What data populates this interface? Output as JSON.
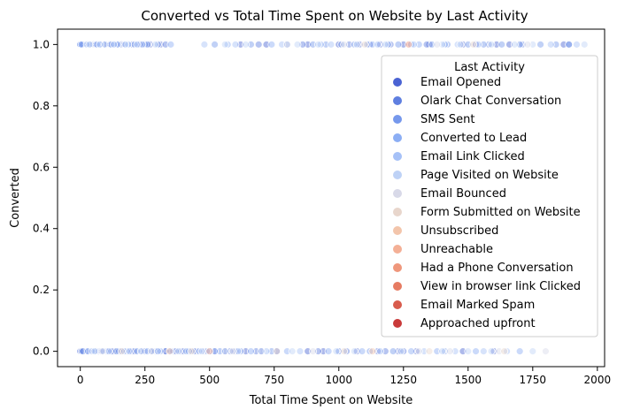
{
  "chart_data": {
    "type": "scatter",
    "title": "Converted vs Total Time Spent on Website by Last Activity",
    "xlabel": "Total Time Spent on Website",
    "ylabel": "Converted",
    "xlim": [
      -88,
      2028
    ],
    "ylim": [
      -0.05,
      1.05
    ],
    "x_ticks": [
      0,
      250,
      500,
      750,
      1000,
      1250,
      1500,
      1750,
      2000
    ],
    "y_ticks": [
      0.0,
      0.2,
      0.4,
      0.6,
      0.8,
      1.0
    ],
    "x_tick_labels": [
      "0",
      "250",
      "500",
      "750",
      "1000",
      "1250",
      "1500",
      "1750",
      "2000"
    ],
    "y_tick_labels": [
      "0.0",
      "0.2",
      "0.4",
      "0.6",
      "0.8",
      "1.0"
    ],
    "grid": false,
    "legend": {
      "title": "Last Activity",
      "placement": "right",
      "entries": [
        {
          "name": "Email Opened",
          "color": "#4a63d3"
        },
        {
          "name": "Olark Chat Conversation",
          "color": "#5f7fe0"
        },
        {
          "name": "SMS Sent",
          "color": "#7698ec"
        },
        {
          "name": "Converted to Lead",
          "color": "#8caef4"
        },
        {
          "name": "Email Link Clicked",
          "color": "#a6c1f7"
        },
        {
          "name": "Page Visited on Website",
          "color": "#bed2f6"
        },
        {
          "name": "Email Bounced",
          "color": "#d8d9e8"
        },
        {
          "name": "Form Submitted on Website",
          "color": "#e8d6cc"
        },
        {
          "name": "Unsubscribed",
          "color": "#f3c5ab"
        },
        {
          "name": "Unreachable",
          "color": "#f4b096"
        },
        {
          "name": "Had a Phone Conversation",
          "color": "#ef977c"
        },
        {
          "name": "View in browser link Clicked",
          "color": "#e67b62"
        },
        {
          "name": "Email Marked Spam",
          "color": "#d85b4c"
        },
        {
          "name": "Approached upfront",
          "color": "#c93a3a"
        }
      ]
    },
    "series": [
      {
        "name": "Email Opened",
        "points": [
          [
            0,
            0
          ],
          [
            15,
            0
          ],
          [
            40,
            0
          ],
          [
            70,
            0
          ],
          [
            100,
            0
          ],
          [
            130,
            0
          ],
          [
            160,
            0
          ],
          [
            200,
            0
          ],
          [
            240,
            0
          ],
          [
            270,
            0
          ],
          [
            300,
            0
          ],
          [
            330,
            0
          ],
          [
            360,
            0
          ],
          [
            390,
            0
          ],
          [
            420,
            0
          ],
          [
            450,
            0
          ],
          [
            480,
            0
          ],
          [
            520,
            0
          ],
          [
            560,
            0
          ],
          [
            600,
            0
          ],
          [
            640,
            0
          ],
          [
            700,
            0
          ],
          [
            760,
            0
          ],
          [
            880,
            0
          ],
          [
            940,
            0
          ],
          [
            1000,
            0
          ],
          [
            1070,
            0
          ],
          [
            1150,
            0
          ],
          [
            1230,
            0
          ],
          [
            1300,
            0
          ],
          [
            1480,
            0
          ],
          [
            1600,
            0
          ],
          [
            0,
            1
          ],
          [
            20,
            1
          ],
          [
            50,
            1
          ],
          [
            100,
            1
          ],
          [
            160,
            1
          ],
          [
            230,
            1
          ],
          [
            270,
            1
          ],
          [
            310,
            1
          ],
          [
            620,
            1
          ],
          [
            720,
            1
          ],
          [
            880,
            1
          ],
          [
            1000,
            1
          ],
          [
            1080,
            1
          ],
          [
            1120,
            1
          ],
          [
            1160,
            1
          ],
          [
            1250,
            1
          ],
          [
            1350,
            1
          ],
          [
            1480,
            1
          ],
          [
            1530,
            1
          ],
          [
            1610,
            1
          ],
          [
            1660,
            1
          ],
          [
            1870,
            1
          ]
        ]
      },
      {
        "name": "Olark Chat Conversation",
        "points": [
          [
            0,
            0
          ],
          [
            5,
            0
          ],
          [
            25,
            0
          ],
          [
            50,
            0
          ],
          [
            80,
            0
          ],
          [
            120,
            0
          ],
          [
            150,
            0
          ],
          [
            180,
            0
          ],
          [
            210,
            0
          ],
          [
            250,
            0
          ],
          [
            290,
            0
          ],
          [
            330,
            0
          ],
          [
            370,
            0
          ],
          [
            400,
            0
          ],
          [
            440,
            0
          ],
          [
            500,
            0
          ],
          [
            580,
            0
          ],
          [
            680,
            0
          ],
          [
            920,
            0
          ],
          [
            1030,
            0
          ],
          [
            1180,
            0
          ],
          [
            1250,
            0
          ],
          [
            0,
            1
          ],
          [
            10,
            1
          ],
          [
            30,
            1
          ],
          [
            60,
            1
          ],
          [
            90,
            1
          ],
          [
            115,
            1
          ],
          [
            140,
            1
          ],
          [
            200,
            1
          ],
          [
            250,
            1
          ],
          [
            330,
            1
          ],
          [
            690,
            1
          ],
          [
            860,
            1
          ],
          [
            1040,
            1
          ],
          [
            1200,
            1
          ],
          [
            1340,
            1
          ],
          [
            1580,
            1
          ],
          [
            1710,
            1
          ],
          [
            1890,
            1
          ]
        ]
      },
      {
        "name": "SMS Sent",
        "points": [
          [
            10,
            0
          ],
          [
            60,
            0
          ],
          [
            140,
            0
          ],
          [
            220,
            0
          ],
          [
            280,
            0
          ],
          [
            350,
            0
          ],
          [
            420,
            0
          ],
          [
            540,
            0
          ],
          [
            620,
            0
          ],
          [
            740,
            0
          ],
          [
            1120,
            0
          ],
          [
            1210,
            0
          ],
          [
            1410,
            0
          ],
          [
            0,
            1
          ],
          [
            40,
            1
          ],
          [
            80,
            1
          ],
          [
            120,
            1
          ],
          [
            170,
            1
          ],
          [
            210,
            1
          ],
          [
            260,
            1
          ],
          [
            300,
            1
          ],
          [
            520,
            1
          ],
          [
            660,
            1
          ],
          [
            800,
            1
          ],
          [
            900,
            1
          ],
          [
            950,
            1
          ],
          [
            1010,
            1
          ],
          [
            1060,
            1
          ],
          [
            1110,
            1
          ],
          [
            1190,
            1
          ],
          [
            1230,
            1
          ],
          [
            1280,
            1
          ],
          [
            1360,
            1
          ],
          [
            1420,
            1
          ],
          [
            1500,
            1
          ],
          [
            1560,
            1
          ],
          [
            1630,
            1
          ],
          [
            1700,
            1
          ],
          [
            1780,
            1
          ],
          [
            1840,
            1
          ],
          [
            1890,
            1
          ]
        ]
      },
      {
        "name": "Converted to Lead",
        "points": [
          [
            30,
            0
          ],
          [
            90,
            0
          ],
          [
            170,
            0
          ],
          [
            260,
            0
          ],
          [
            310,
            0
          ],
          [
            460,
            0
          ],
          [
            520,
            0
          ],
          [
            660,
            0
          ],
          [
            800,
            0
          ],
          [
            960,
            0
          ],
          [
            1090,
            0
          ],
          [
            1280,
            0
          ],
          [
            1380,
            0
          ],
          [
            1530,
            0
          ],
          [
            1700,
            0
          ],
          [
            5,
            1
          ],
          [
            65,
            1
          ],
          [
            145,
            1
          ],
          [
            185,
            1
          ],
          [
            240,
            1
          ],
          [
            350,
            1
          ],
          [
            570,
            1
          ],
          [
            740,
            1
          ],
          [
            930,
            1
          ],
          [
            1130,
            1
          ],
          [
            1310,
            1
          ],
          [
            1410,
            1
          ]
        ]
      },
      {
        "name": "Email Link Clicked",
        "points": [
          [
            45,
            0
          ],
          [
            110,
            0
          ],
          [
            190,
            0
          ],
          [
            300,
            0
          ],
          [
            410,
            0
          ],
          [
            490,
            0
          ],
          [
            610,
            0
          ],
          [
            720,
            0
          ],
          [
            850,
            0
          ],
          [
            1000,
            0
          ],
          [
            1160,
            0
          ],
          [
            1330,
            0
          ],
          [
            1450,
            0
          ],
          [
            1560,
            0
          ],
          [
            1650,
            0
          ],
          [
            25,
            1
          ],
          [
            75,
            1
          ],
          [
            130,
            1
          ],
          [
            220,
            1
          ],
          [
            480,
            1
          ],
          [
            600,
            1
          ],
          [
            780,
            1
          ],
          [
            970,
            1
          ],
          [
            1150,
            1
          ],
          [
            1290,
            1
          ],
          [
            1460,
            1
          ],
          [
            1540,
            1
          ],
          [
            1820,
            1
          ],
          [
            1920,
            1
          ]
        ]
      },
      {
        "name": "Page Visited on Website",
        "points": [
          [
            55,
            0
          ],
          [
            235,
            0
          ],
          [
            380,
            0
          ],
          [
            470,
            0
          ],
          [
            560,
            0
          ],
          [
            700,
            0
          ],
          [
            820,
            0
          ],
          [
            990,
            0
          ],
          [
            1060,
            0
          ],
          [
            1240,
            0
          ],
          [
            1400,
            0
          ],
          [
            1500,
            0
          ],
          [
            1590,
            0
          ],
          [
            1750,
            0
          ],
          [
            35,
            1
          ],
          [
            95,
            1
          ],
          [
            175,
            1
          ],
          [
            290,
            1
          ],
          [
            560,
            1
          ],
          [
            640,
            1
          ],
          [
            840,
            1
          ],
          [
            920,
            1
          ],
          [
            1070,
            1
          ],
          [
            1180,
            1
          ],
          [
            1400,
            1
          ],
          [
            1470,
            1
          ],
          [
            1590,
            1
          ],
          [
            1680,
            1
          ],
          [
            1750,
            1
          ],
          [
            1950,
            1
          ]
        ]
      },
      {
        "name": "Email Bounced",
        "points": [
          [
            85,
            0
          ],
          [
            275,
            0
          ],
          [
            590,
            0
          ],
          [
            900,
            0
          ],
          [
            1310,
            0
          ],
          [
            1430,
            0
          ],
          [
            1620,
            0
          ],
          [
            1800,
            0
          ],
          [
            800,
            1
          ],
          [
            1020,
            1
          ],
          [
            1380,
            1
          ],
          [
            1730,
            1
          ]
        ]
      },
      {
        "name": "Form Submitted on Website",
        "points": [
          [
            160,
            0
          ],
          [
            430,
            0
          ],
          [
            760,
            0
          ],
          [
            1020,
            0
          ],
          [
            1350,
            0
          ],
          [
            1640,
            0
          ],
          [
            1100,
            1
          ],
          [
            1520,
            1
          ]
        ]
      },
      {
        "name": "Unsubscribed",
        "points": [
          [
            345,
            0
          ],
          [
            1130,
            0
          ]
        ]
      },
      {
        "name": "Unreachable",
        "points": [
          [
            500,
            0
          ]
        ]
      },
      {
        "name": "Had a Phone Conversation",
        "points": [
          [
            1270,
            1
          ]
        ]
      },
      {
        "name": "View in browser link Clicked",
        "points": []
      },
      {
        "name": "Email Marked Spam",
        "points": []
      },
      {
        "name": "Approached upfront",
        "points": []
      }
    ]
  }
}
